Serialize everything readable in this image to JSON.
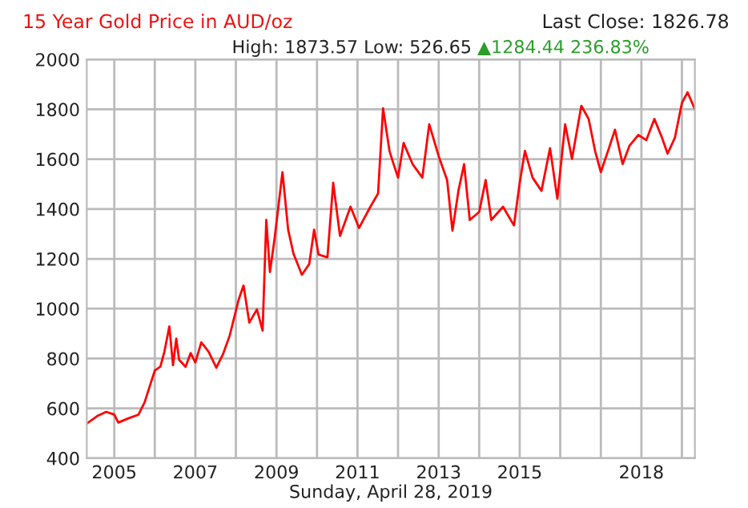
{
  "chart_data": {
    "type": "line",
    "title": "15 Year Gold Price in AUD/oz",
    "subtitle": "High: 1873.57 Low: 526.65",
    "annotations": [
      "Last Close: 1826.78",
      "▲1284.44 236.83%"
    ],
    "xlabel": "Sunday, April 28, 2019",
    "x": [
      "2004-04-28",
      "2004-08-07",
      "2004-10-20",
      "2005-01-01",
      "2005-02-06",
      "2005-05-08",
      "2005-08-07",
      "2005-10-01",
      "2006-01-01",
      "2006-02-20",
      "2006-03-28",
      "2006-05-12",
      "2006-06-14",
      "2006-07-13",
      "2006-08-08",
      "2006-10-05",
      "2006-11-20",
      "2007-01-01",
      "2007-02-24",
      "2007-05-01",
      "2007-07-09",
      "2007-09-06",
      "2007-11-06",
      "2008-01-26",
      "2008-03-10",
      "2008-05-01",
      "2008-07-09",
      "2008-08-29",
      "2008-10-01",
      "2008-11-03",
      "2008-12-13",
      "2009-02-24",
      "2009-04-16",
      "2009-06-03",
      "2009-08-18",
      "2009-10-23",
      "2009-12-06",
      "2010-01-15",
      "2010-04-05",
      "2010-05-27",
      "2010-07-27",
      "2010-10-30",
      "2011-01-15",
      "2011-04-27",
      "2011-07-05",
      "2011-08-19",
      "2011-10-16",
      "2011-11-22",
      "2012-01-01",
      "2012-02-20",
      "2012-05-11",
      "2012-08-07",
      "2012-10-08",
      "2013-01-01",
      "2013-03-18",
      "2013-05-05",
      "2013-06-28",
      "2013-08-18",
      "2013-10-08",
      "2014-01-01",
      "2014-02-28",
      "2014-04-20",
      "2014-08-04",
      "2014-11-10",
      "2015-01-01",
      "2015-02-17",
      "2015-04-27",
      "2015-07-16",
      "2015-10-01",
      "2015-12-06",
      "2016-02-14",
      "2016-04-16",
      "2016-07-09",
      "2016-09-13",
      "2016-11-10",
      "2017-01-01",
      "2017-03-15",
      "2017-05-08",
      "2017-07-16",
      "2017-09-16",
      "2017-12-05",
      "2018-02-14",
      "2018-04-28",
      "2018-07-06",
      "2018-08-25",
      "2018-10-30",
      "2019-01-01",
      "2019-02-21",
      "2019-04-28"
    ],
    "series": [
      {
        "color": "#ff0000",
        "values": [
          539,
          571,
          586,
          575,
          543,
          560,
          575,
          624,
          752,
          767,
          827,
          929,
          773,
          880,
          795,
          767,
          822,
          784,
          865,
          827,
          763,
          816,
          891,
          1036,
          1093,
          944,
          997,
          912,
          1356,
          1147,
          1275,
          1548,
          1317,
          1221,
          1136,
          1179,
          1317,
          1217,
          1206,
          1505,
          1292,
          1409,
          1324,
          1409,
          1462,
          1804,
          1633,
          1580,
          1526,
          1665,
          1580,
          1526,
          1740,
          1612,
          1516,
          1313,
          1473,
          1580,
          1356,
          1388,
          1516,
          1356,
          1409,
          1334,
          1505,
          1633,
          1526,
          1473,
          1644,
          1441,
          1740,
          1601,
          1814,
          1761,
          1633,
          1548,
          1644,
          1718,
          1580,
          1654,
          1697,
          1676,
          1761,
          1686,
          1622,
          1686,
          1825,
          1868,
          1800
        ]
      }
    ],
    "xlim": [
      "2004-04-28",
      "2019-04-28"
    ],
    "xticks": [
      {
        "value": "2005",
        "label": "2005"
      },
      {
        "value": "2006",
        "label": null
      },
      {
        "value": "2007",
        "label": "2007"
      },
      {
        "value": "2008",
        "label": null
      },
      {
        "value": "2009",
        "label": "2009"
      },
      {
        "value": "2010",
        "label": null
      },
      {
        "value": "2011",
        "label": "2011"
      },
      {
        "value": "2012",
        "label": null
      },
      {
        "value": "2013",
        "label": "2013"
      },
      {
        "value": "2014",
        "label": null
      },
      {
        "value": "2015",
        "label": "2015"
      },
      {
        "value": "2016",
        "label": null
      },
      {
        "value": "2017",
        "label": null
      },
      {
        "value": "2018",
        "label": "2018"
      },
      {
        "value": "2019",
        "label": null
      }
    ],
    "ylim": [
      400,
      2000
    ],
    "yticks": [
      400,
      600,
      800,
      1000,
      1200,
      1400,
      1600,
      1800,
      2000
    ],
    "grid": true,
    "marker": "none",
    "line_style": "solid"
  }
}
